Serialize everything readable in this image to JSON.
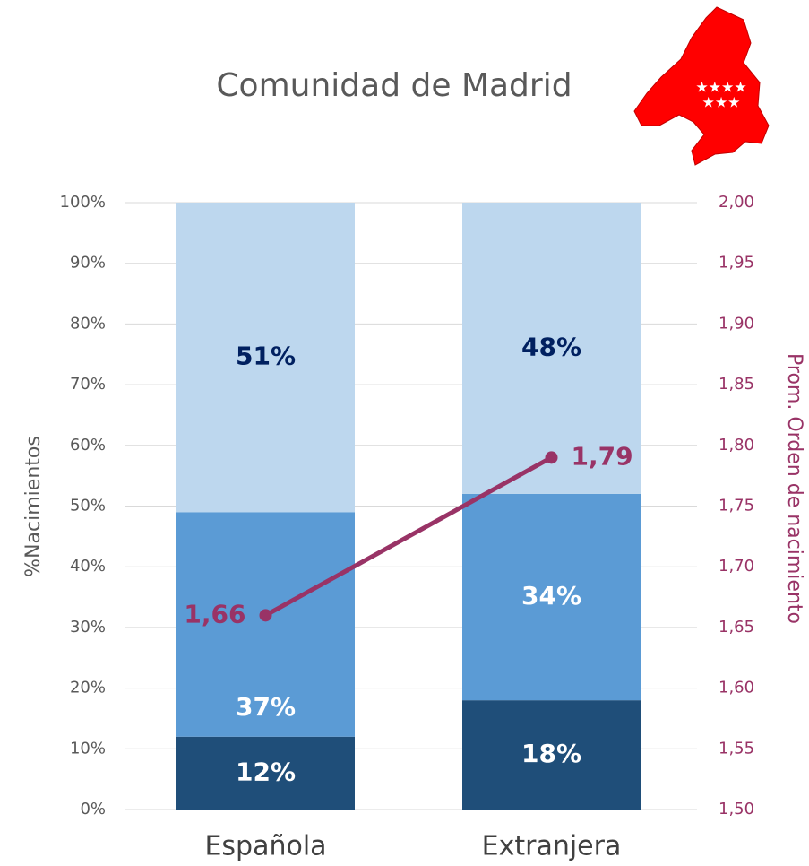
{
  "chart_data": {
    "type": "bar",
    "stacked": true,
    "title": "Comunidad de Madrid",
    "categories": [
      "Española",
      "Extranjera"
    ],
    "series": [
      {
        "color": "#1f4e79",
        "label_color": "#ffffff",
        "values": [
          12,
          18
        ],
        "value_labels": [
          "12%",
          "18%"
        ]
      },
      {
        "color": "#5b9bd5",
        "label_color": "#ffffff",
        "values": [
          37,
          34
        ],
        "value_labels": [
          "37%",
          "34%"
        ]
      },
      {
        "color": "#bdd7ee",
        "label_color": "#002060",
        "values": [
          51,
          48
        ],
        "value_labels": [
          "51%",
          "48%"
        ]
      },
      {
        "type": "line",
        "axis": "y2",
        "color": "#993366",
        "label_color": "#993366",
        "values": [
          1.66,
          1.79
        ],
        "value_labels": [
          "1,66",
          "1,79"
        ]
      }
    ],
    "ylabel": "%Nacimientos",
    "y2label": "Prom. Orden de nacimiento",
    "ylim": [
      0,
      100
    ],
    "yticks": [
      {
        "value": 0,
        "label": "0%"
      },
      {
        "value": 10,
        "label": "10%"
      },
      {
        "value": 20,
        "label": "20%"
      },
      {
        "value": 30,
        "label": "30%"
      },
      {
        "value": 40,
        "label": "40%"
      },
      {
        "value": 50,
        "label": "50%"
      },
      {
        "value": 60,
        "label": "60%"
      },
      {
        "value": 70,
        "label": "70%"
      },
      {
        "value": 80,
        "label": "80%"
      },
      {
        "value": 90,
        "label": "90%"
      },
      {
        "value": 100,
        "label": "100%"
      }
    ],
    "y2lim": [
      1.5,
      2.0
    ],
    "y2ticks": [
      {
        "value": 1.5,
        "label": "1,50"
      },
      {
        "value": 1.55,
        "label": "1,55"
      },
      {
        "value": 1.6,
        "label": "1,60"
      },
      {
        "value": 1.65,
        "label": "1,65"
      },
      {
        "value": 1.7,
        "label": "1,70"
      },
      {
        "value": 1.75,
        "label": "1,75"
      },
      {
        "value": 1.8,
        "label": "1,80"
      },
      {
        "value": 1.85,
        "label": "1,85"
      },
      {
        "value": 1.9,
        "label": "1,90"
      },
      {
        "value": 1.95,
        "label": "1,95"
      },
      {
        "value": 2.0,
        "label": "2,00"
      }
    ],
    "grid": true
  }
}
